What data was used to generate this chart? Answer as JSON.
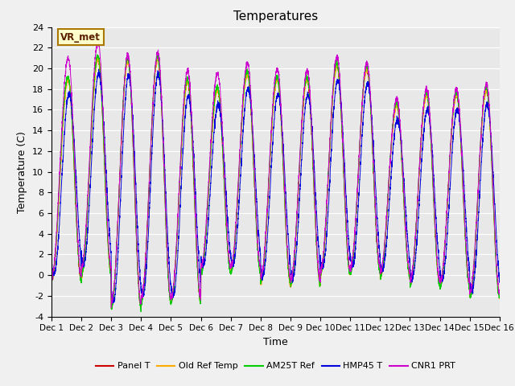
{
  "title": "Temperatures",
  "ylabel": "Temperature (C)",
  "xlabel": "Time",
  "ylim": [
    -4,
    24
  ],
  "yticks": [
    -4,
    -2,
    0,
    2,
    4,
    6,
    8,
    10,
    12,
    14,
    16,
    18,
    20,
    22,
    24
  ],
  "xtick_labels": [
    "Dec 1",
    "Dec 2",
    "Dec 3",
    "Dec 4",
    "Dec 5",
    "Dec 6",
    "Dec 7",
    "Dec 8",
    "Dec 9",
    "Dec 10",
    "Dec 11",
    "Dec 12",
    "Dec 13",
    "Dec 14",
    "Dec 15",
    "Dec 16"
  ],
  "series_colors": {
    "Panel T": "#cc0000",
    "Old Ref Temp": "#ffaa00",
    "AM25T Ref": "#00cc00",
    "HMP45 T": "#0000dd",
    "CNR1 PRT": "#cc00cc"
  },
  "legend_label": "VR_met",
  "fig_facecolor": "#f0f0f0",
  "plot_facecolor": "#e8e8e8",
  "n_days": 15,
  "points_per_day": 288,
  "daily_peaks": [
    19.0,
    21.0,
    20.8,
    21.0,
    18.8,
    18.0,
    19.5,
    19.0,
    19.0,
    20.3,
    20.0,
    16.5,
    17.5,
    17.5,
    18.0
  ],
  "daily_mins_red": [
    -0.5,
    0.5,
    -3.0,
    -2.5,
    -2.5,
    0.5,
    0.5,
    -0.5,
    -0.8,
    0.2,
    0.5,
    0.0,
    -0.8,
    -1.0,
    -2.0
  ],
  "daily_mins_grn": [
    -0.5,
    0.0,
    -3.2,
    -2.7,
    -2.7,
    0.2,
    0.2,
    -0.7,
    -1.0,
    0.0,
    0.2,
    -0.2,
    -1.0,
    -1.2,
    -2.2
  ],
  "daily_mins_org": [
    -0.5,
    0.0,
    -2.8,
    -2.5,
    -2.5,
    0.5,
    0.5,
    -0.8,
    -1.0,
    0.0,
    0.5,
    -0.2,
    -0.8,
    -1.0,
    -2.0
  ],
  "peak_hour": 0.55,
  "cnr1_offsets": [
    2.0,
    1.5,
    0.5,
    0.5,
    1.0,
    1.5,
    1.0,
    1.0,
    0.8,
    0.8,
    0.5,
    0.5,
    0.5,
    0.5,
    0.5
  ],
  "hmp45_lags": [
    0.08,
    0.07,
    0.07,
    0.06,
    0.07,
    0.07,
    0.07,
    0.07,
    0.07,
    0.07,
    0.07,
    0.07,
    0.07,
    0.07,
    0.07
  ]
}
